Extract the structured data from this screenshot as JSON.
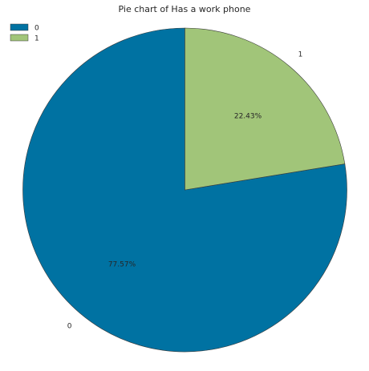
{
  "chart_data": {
    "type": "pie",
    "title": "Pie chart of Has a work phone",
    "categories": [
      "0",
      "1"
    ],
    "values": [
      77.57,
      22.43
    ],
    "percent_labels": [
      "77.57%",
      "22.43%"
    ],
    "colors": [
      "#0072a2",
      "#a1c579"
    ],
    "start_angle_deg": 90,
    "direction": "counterclockwise",
    "legend": {
      "placement": "top-left",
      "entries": [
        "0",
        "1"
      ]
    }
  }
}
